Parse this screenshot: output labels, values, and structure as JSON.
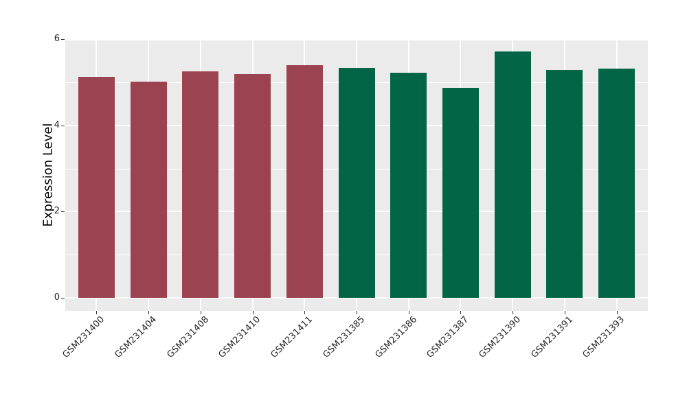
{
  "figure": {
    "background": "#ffffff",
    "panel_background": "#ebebeb",
    "grid_color": "#ffffff",
    "tick_color": "#333333",
    "axis_text_color": "#262626",
    "axis_title_color": "#000000"
  },
  "chart_data": {
    "type": "bar",
    "title": "",
    "xlabel": "",
    "ylabel": "Expression Level",
    "categories": [
      "GSM231400",
      "GSM231404",
      "GSM231408",
      "GSM231410",
      "GSM231411",
      "GSM231385",
      "GSM231386",
      "GSM231387",
      "GSM231390",
      "GSM231391",
      "GSM231393"
    ],
    "values": [
      5.12,
      5.02,
      5.26,
      5.19,
      5.39,
      5.33,
      5.22,
      4.87,
      5.72,
      5.29,
      5.32
    ],
    "bar_colors": [
      "#9c4351",
      "#9c4351",
      "#9c4351",
      "#9c4351",
      "#9c4351",
      "#026646",
      "#026646",
      "#026646",
      "#026646",
      "#026646",
      "#026646"
    ],
    "groups": [
      {
        "name": "maroon-group",
        "color": "#9c4351",
        "categories": [
          "GSM231400",
          "GSM231404",
          "GSM231408",
          "GSM231410",
          "GSM231411"
        ]
      },
      {
        "name": "green-group",
        "color": "#026646",
        "categories": [
          "GSM231385",
          "GSM231386",
          "GSM231387",
          "GSM231390",
          "GSM231391",
          "GSM231393"
        ]
      }
    ],
    "yticks": [
      0,
      2,
      4,
      6
    ],
    "yticks_minor": [
      1,
      3,
      5
    ],
    "ylim": [
      -0.3,
      6.02
    ],
    "grid": true,
    "legend_position": "none"
  }
}
